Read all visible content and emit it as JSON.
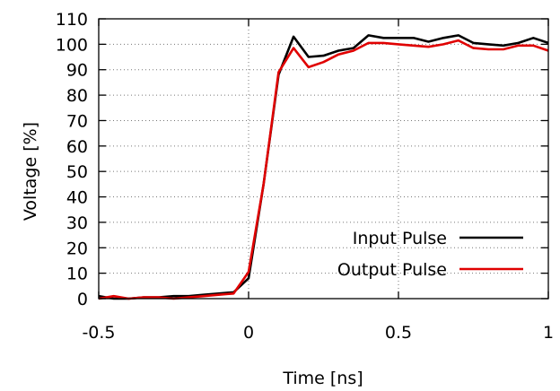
{
  "chart_data": {
    "type": "line",
    "xlabel": "Time [ns]",
    "ylabel": "Voltage [%]",
    "xlim": [
      -0.5,
      1
    ],
    "ylim": [
      0,
      110
    ],
    "xticks": [
      -0.5,
      0,
      0.5,
      1
    ],
    "xtick_labels": [
      "-0.5",
      "0",
      "0.5",
      "1"
    ],
    "yticks": [
      0,
      10,
      20,
      30,
      40,
      50,
      60,
      70,
      80,
      90,
      100,
      110
    ],
    "ytick_labels": [
      "0",
      "10",
      "20",
      "30",
      "40",
      "50",
      "60",
      "70",
      "80",
      "90",
      "100",
      "110"
    ],
    "grid": true,
    "legend_position": "bottom-right",
    "series": [
      {
        "name": "Input Pulse",
        "color": "#000000",
        "x": [
          -0.5,
          -0.45,
          -0.4,
          -0.35,
          -0.3,
          -0.25,
          -0.2,
          -0.15,
          -0.1,
          -0.05,
          0,
          0.05,
          0.1,
          0.15,
          0.2,
          0.25,
          0.3,
          0.35,
          0.4,
          0.45,
          0.5,
          0.55,
          0.6,
          0.65,
          0.7,
          0.75,
          0.8,
          0.85,
          0.9,
          0.95,
          1
        ],
        "y": [
          1,
          0,
          0,
          0.5,
          0.5,
          1,
          1,
          1.5,
          2,
          2.5,
          8,
          45,
          88,
          103,
          95,
          95.5,
          97.5,
          98.5,
          103.5,
          102.5,
          102.5,
          102.5,
          101,
          102.5,
          103.5,
          100.5,
          100,
          99.5,
          100.5,
          102.5,
          100.5
        ]
      },
      {
        "name": "Output Pulse",
        "color": "#e00000",
        "x": [
          -0.5,
          -0.45,
          -0.4,
          -0.35,
          -0.3,
          -0.25,
          -0.2,
          -0.15,
          -0.1,
          -0.05,
          0,
          0.05,
          0.1,
          0.15,
          0.2,
          0.25,
          0.3,
          0.35,
          0.4,
          0.45,
          0.5,
          0.55,
          0.6,
          0.65,
          0.7,
          0.75,
          0.8,
          0.85,
          0.9,
          0.95,
          1
        ],
        "y": [
          0,
          1,
          0,
          0.5,
          0.5,
          0,
          0.5,
          1,
          1.5,
          2,
          10.5,
          45,
          89,
          98.5,
          91,
          93,
          96,
          97.5,
          100.5,
          100.5,
          100,
          99.5,
          99,
          100,
          101.5,
          98.5,
          98,
          98,
          99.5,
          99.5,
          97.5
        ]
      }
    ]
  }
}
